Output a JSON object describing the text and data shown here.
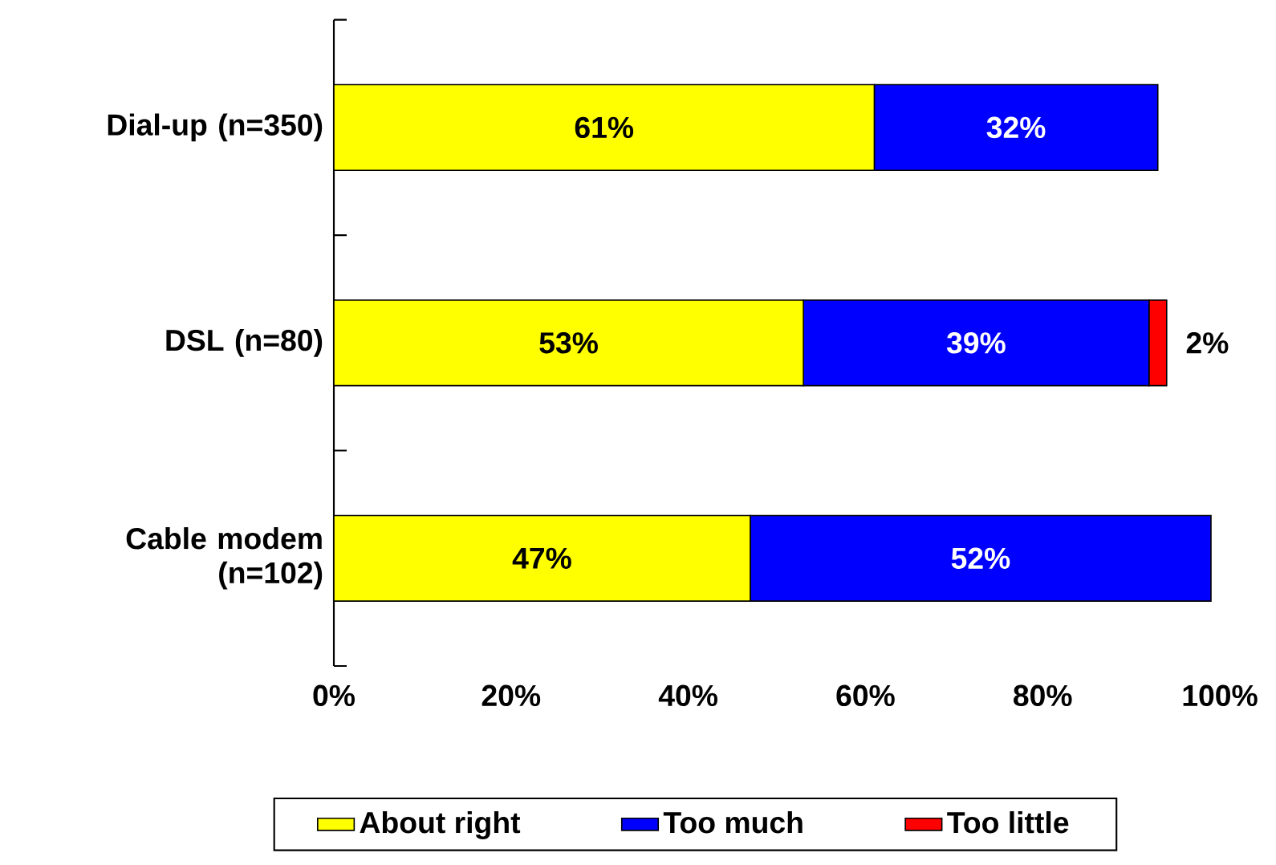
{
  "chart_data": {
    "type": "bar",
    "orientation": "horizontal",
    "stacked": true,
    "categories": [
      "Dial-up (n=350)",
      "DSL (n=80)",
      "Cable modem (n=102)"
    ],
    "series": [
      {
        "name": "About right",
        "color": "#ffff00",
        "values": [
          61,
          53,
          47
        ],
        "value_labels": [
          "61%",
          "53%",
          "47%"
        ]
      },
      {
        "name": "Too much",
        "color": "#0000ff",
        "values": [
          32,
          39,
          52
        ],
        "value_labels": [
          "32%",
          "39%",
          "52%"
        ]
      },
      {
        "name": "Too little",
        "color": "#ff0000",
        "values": [
          null,
          2,
          null
        ],
        "value_labels": [
          null,
          "2%",
          null
        ]
      }
    ],
    "xlim": [
      0,
      100
    ],
    "xticks": [
      {
        "value": 0,
        "label": "0%"
      },
      {
        "value": 20,
        "label": "20%"
      },
      {
        "value": 40,
        "label": "40%"
      },
      {
        "value": 60,
        "label": "60%"
      },
      {
        "value": 80,
        "label": "80%"
      },
      {
        "value": 100,
        "label": "100%"
      }
    ],
    "grid": false,
    "legend": "bottom"
  }
}
